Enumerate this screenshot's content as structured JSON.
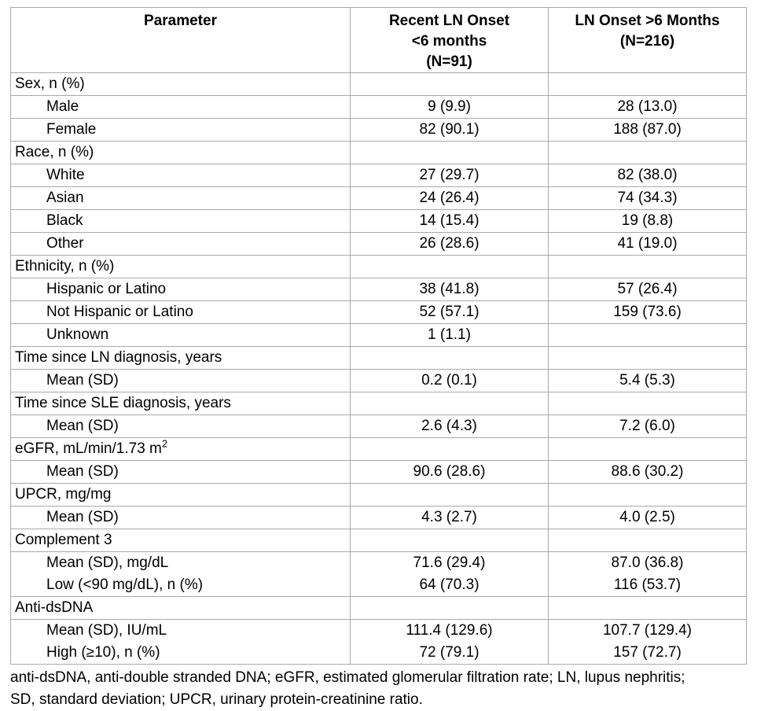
{
  "table": {
    "header": {
      "parameter": "Parameter",
      "col1_lines": [
        "Recent LN Onset",
        "<6 months",
        "(N=91)"
      ],
      "col2_lines": [
        "LN Onset >6 Months",
        "(N=216)"
      ]
    },
    "rows": [
      {
        "param": "Sex, n (%)",
        "c1": "",
        "c2": "",
        "indent": false
      },
      {
        "param": "Male",
        "c1": "9 (9.9)",
        "c2": "28 (13.0)",
        "indent": true
      },
      {
        "param": "Female",
        "c1": "82 (90.1)",
        "c2": "188 (87.0)",
        "indent": true
      },
      {
        "param": "Race, n (%)",
        "c1": "",
        "c2": "",
        "indent": false
      },
      {
        "param": "White",
        "c1": "27 (29.7)",
        "c2": "82 (38.0)",
        "indent": true
      },
      {
        "param": "Asian",
        "c1": "24 (26.4)",
        "c2": "74 (34.3)",
        "indent": true
      },
      {
        "param": "Black",
        "c1": "14 (15.4)",
        "c2": "19 (8.8)",
        "indent": true
      },
      {
        "param": "Other",
        "c1": "26 (28.6)",
        "c2": "41 (19.0)",
        "indent": true
      },
      {
        "param": "Ethnicity, n (%)",
        "c1": "",
        "c2": "",
        "indent": false
      },
      {
        "param": "Hispanic or Latino",
        "c1": "38 (41.8)",
        "c2": "57 (26.4)",
        "indent": true
      },
      {
        "param": "Not Hispanic or Latino",
        "c1": "52 (57.1)",
        "c2": "159 (73.6)",
        "indent": true
      },
      {
        "param": "Unknown",
        "c1": "1 (1.1)",
        "c2": "",
        "indent": true
      },
      {
        "param": "Time since LN diagnosis, years",
        "c1": "",
        "c2": "",
        "indent": false
      },
      {
        "param": "Mean (SD)",
        "c1": "0.2 (0.1)",
        "c2": "5.4 (5.3)",
        "indent": true
      },
      {
        "param": "Time since SLE diagnosis, years",
        "c1": "",
        "c2": "",
        "indent": false
      },
      {
        "param": "Mean (SD)",
        "c1": "2.6 (4.3)",
        "c2": "7.2 (6.0)",
        "indent": true
      },
      {
        "param": "eGFR, mL/min/1.73 m",
        "param_sup": "2",
        "c1": "",
        "c2": "",
        "indent": false
      },
      {
        "param": "Mean (SD)",
        "c1": "90.6 (28.6)",
        "c2": "88.6 (30.2)",
        "indent": true
      },
      {
        "param": "UPCR, mg/mg",
        "c1": "",
        "c2": "",
        "indent": false
      },
      {
        "param": "Mean (SD)",
        "c1": "4.3 (2.7)",
        "c2": "4.0 (2.5)",
        "indent": true
      },
      {
        "param": "Complement 3",
        "c1": "",
        "c2": "",
        "indent": false
      },
      {
        "param": [
          "Mean (SD), mg/dL",
          "Low (<90 mg/dL), n (%)"
        ],
        "c1": [
          "71.6 (29.4)",
          "64 (70.3)"
        ],
        "c2": [
          "87.0 (36.8)",
          "116 (53.7)"
        ],
        "indent": true
      },
      {
        "param": "Anti-dsDNA",
        "c1": "",
        "c2": "",
        "indent": false
      },
      {
        "param": [
          "Mean (SD), IU/mL",
          "High (≥10), n (%)"
        ],
        "c1": [
          "111.4 (129.6)",
          "72 (79.1)"
        ],
        "c2": [
          "107.7 (129.4)",
          "157 (72.7)"
        ],
        "indent": true
      }
    ]
  },
  "footnote": {
    "line1": "anti-dsDNA, anti-double stranded DNA; eGFR, estimated glomerular filtration rate; LN, lupus nephritis;",
    "line2": "SD, standard deviation; UPCR, urinary protein-creatinine ratio."
  },
  "colors": {
    "border": "#a9a9a9",
    "text": "#000000",
    "background": "#ffffff"
  }
}
